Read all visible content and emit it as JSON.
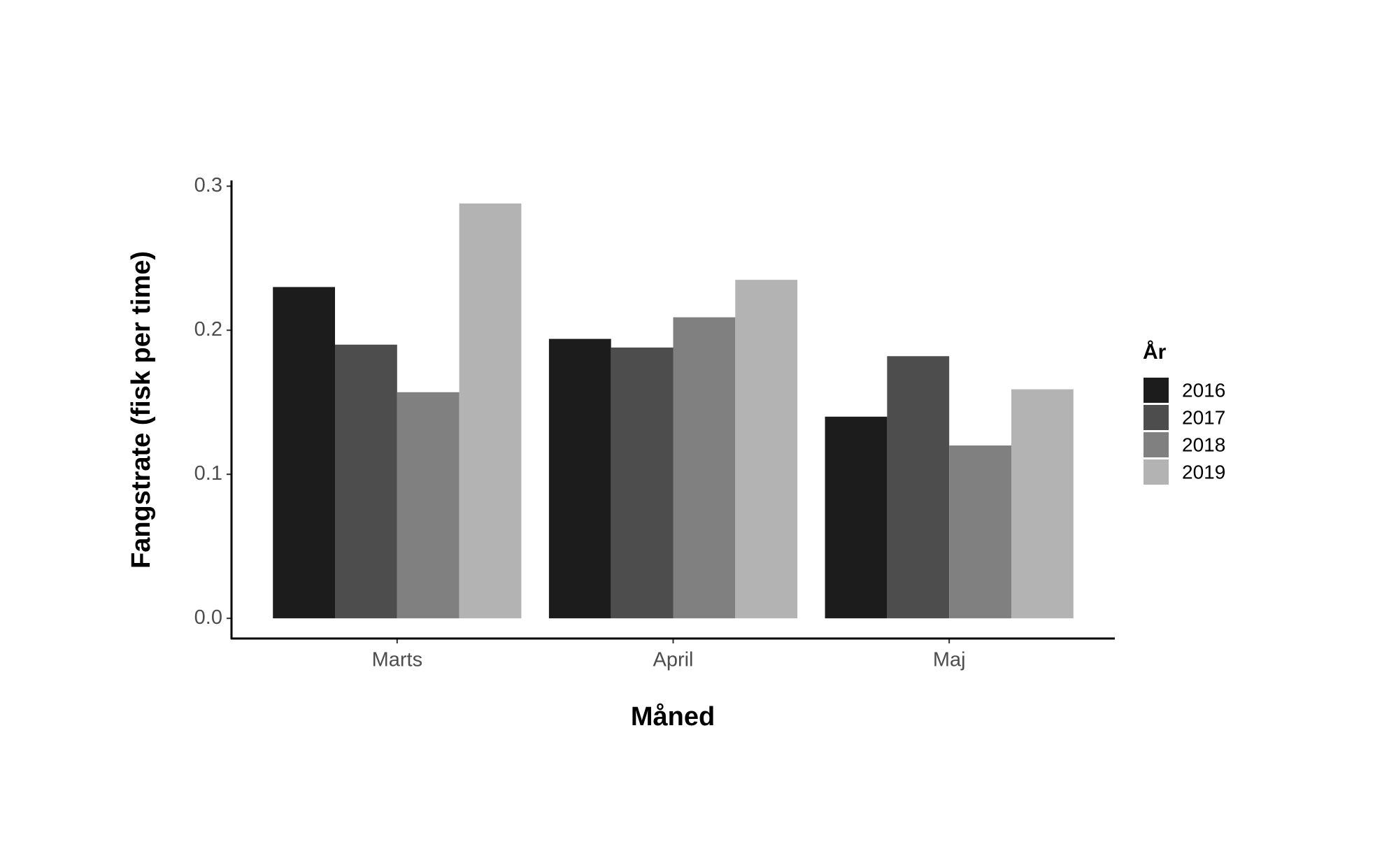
{
  "chart_data": {
    "type": "bar",
    "x_label": "Måned",
    "y_label": "Fangstrate (fisk per time)",
    "legend_title": "År",
    "legend_position": "right",
    "categories": [
      "Marts",
      "April",
      "Maj"
    ],
    "series": [
      {
        "name": "2016",
        "color": "#1c1c1c",
        "values": [
          0.23,
          0.194,
          0.14
        ]
      },
      {
        "name": "2017",
        "color": "#4d4d4d",
        "values": [
          0.19,
          0.188,
          0.182
        ]
      },
      {
        "name": "2018",
        "color": "#808080",
        "values": [
          0.157,
          0.209,
          0.12
        ]
      },
      {
        "name": "2019",
        "color": "#b3b3b3",
        "values": [
          0.288,
          0.235,
          0.159
        ]
      }
    ],
    "ylim": [
      -0.014,
      0.304
    ],
    "yticks": [
      {
        "value": 0,
        "label": "0.0"
      },
      0.1,
      0.2,
      0.3
    ],
    "grid": false
  }
}
